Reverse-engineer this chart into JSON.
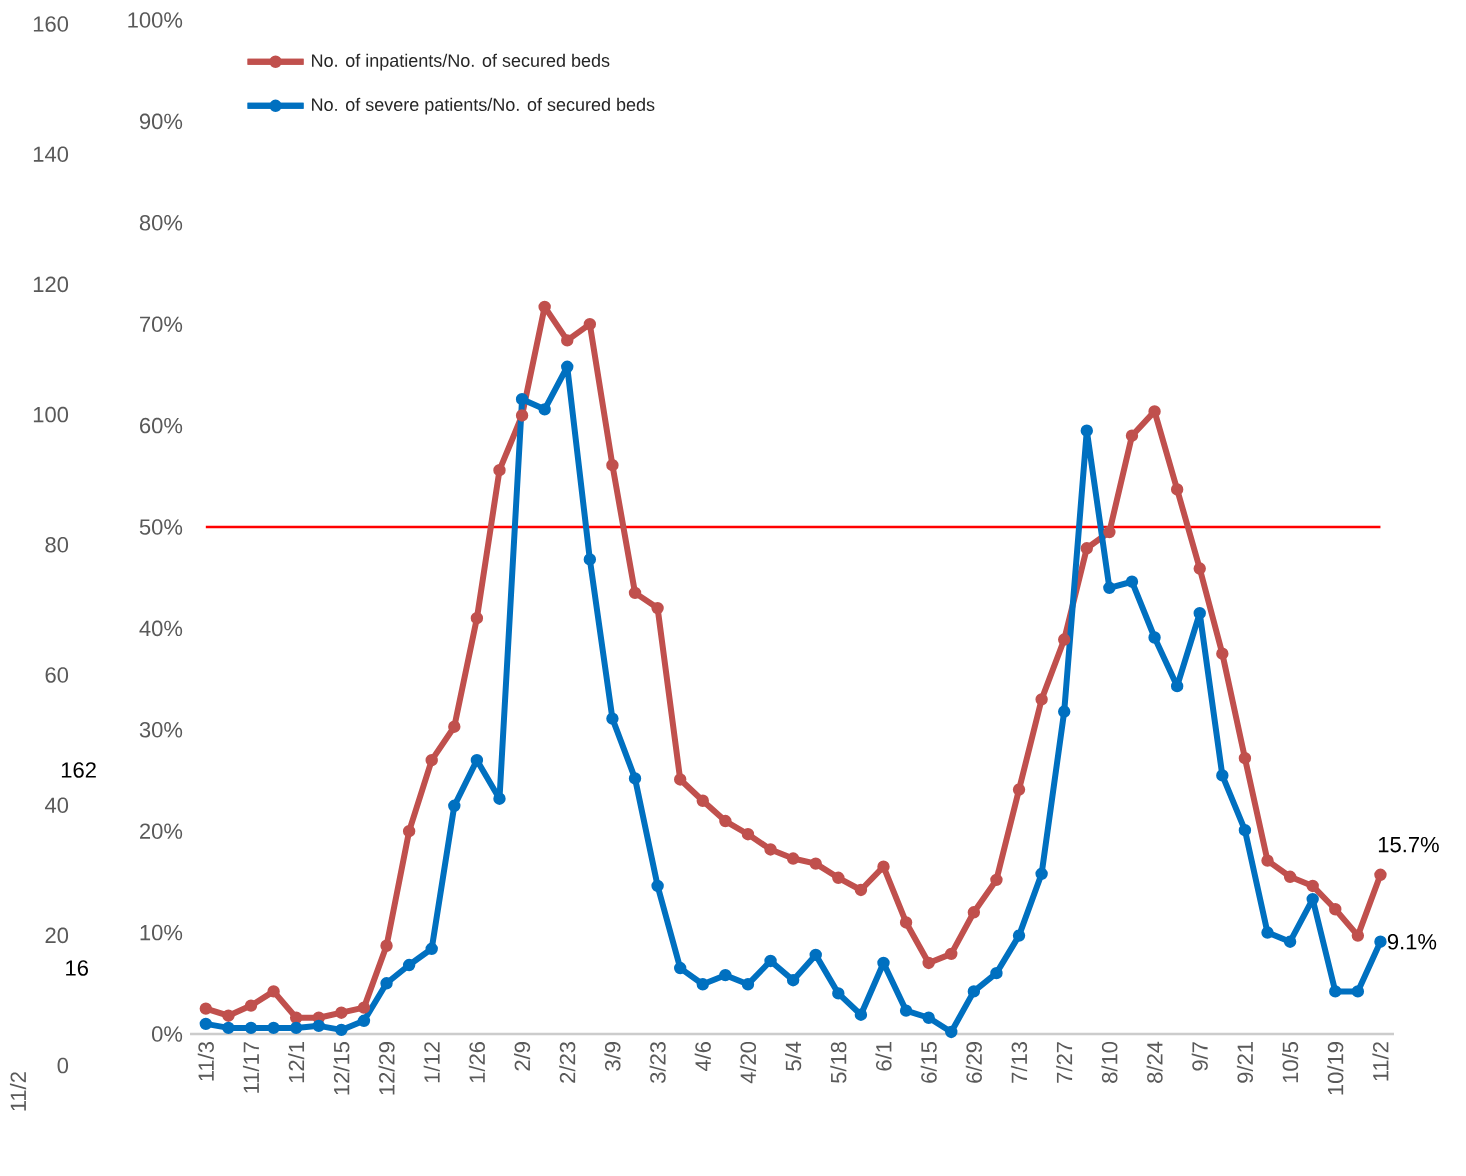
{
  "chart_data": {
    "type": "line",
    "categories": [
      "11/3",
      null,
      "11/17",
      null,
      "12/1",
      null,
      "12/15",
      null,
      "12/29",
      null,
      "1/12",
      null,
      "1/26",
      null,
      "2/9",
      null,
      "2/23",
      null,
      "3/9",
      null,
      "3/23",
      null,
      "4/6",
      null,
      "4/20",
      null,
      "5/4",
      null,
      "5/18",
      null,
      "6/1",
      null,
      "6/15",
      null,
      "6/29",
      null,
      "7/13",
      null,
      "7/27",
      null,
      "8/10",
      null,
      "8/24",
      null,
      "9/7",
      null,
      "9/21",
      null,
      "10/5",
      null,
      "10/19",
      null,
      "11/2"
    ],
    "series": [
      {
        "name": "No. of inpatients/No. of secured beds",
        "color": "#c0504d",
        "values": [
          2.5,
          1.8,
          2.8,
          4.2,
          1.6,
          1.6,
          2.1,
          2.6,
          8.7,
          20.0,
          27.0,
          30.3,
          41.0,
          55.6,
          61.0,
          71.7,
          68.4,
          70.0,
          56.1,
          43.5,
          42.0,
          25.1,
          23.0,
          21.0,
          19.7,
          18.2,
          17.3,
          16.8,
          15.4,
          14.2,
          16.5,
          11.0,
          7.0,
          7.9,
          12.0,
          15.2,
          24.1,
          33.0,
          38.9,
          47.9,
          49.5,
          59.0,
          61.4,
          53.7,
          45.9,
          37.5,
          27.2,
          17.1,
          15.5,
          14.6,
          12.3,
          9.7,
          15.7
        ],
        "value_labels": [
          null,
          null,
          null,
          null,
          null,
          null,
          null,
          null,
          null,
          null,
          null,
          null,
          null,
          null,
          null,
          null,
          null,
          null,
          null,
          null,
          null,
          null,
          null,
          null,
          null,
          null,
          null,
          null,
          null,
          null,
          null,
          null,
          null,
          null,
          null,
          null,
          null,
          null,
          null,
          null,
          null,
          null,
          null,
          null,
          null,
          null,
          null,
          null,
          null,
          null,
          null,
          null,
          "15.7%"
        ]
      },
      {
        "name": "No. of severe patients/No. of secured beds",
        "color": "#0070c0",
        "values": [
          1.0,
          0.6,
          0.6,
          0.6,
          0.6,
          0.8,
          0.4,
          1.3,
          5.0,
          6.8,
          8.4,
          22.5,
          27.0,
          23.2,
          62.6,
          61.6,
          65.8,
          46.8,
          31.1,
          25.2,
          14.6,
          6.5,
          4.9,
          5.8,
          4.9,
          7.2,
          5.3,
          7.8,
          4.0,
          1.9,
          7.0,
          2.3,
          1.6,
          0.2,
          4.2,
          6.0,
          9.7,
          15.8,
          31.8,
          59.5,
          44.0,
          44.6,
          39.1,
          34.3,
          41.5,
          25.5,
          20.1,
          10.0,
          9.1,
          13.3,
          4.2,
          4.2,
          9.1
        ],
        "value_labels": [
          null,
          null,
          null,
          null,
          null,
          null,
          null,
          null,
          null,
          null,
          null,
          null,
          null,
          null,
          null,
          null,
          null,
          null,
          null,
          null,
          null,
          null,
          null,
          null,
          null,
          null,
          null,
          null,
          null,
          null,
          null,
          null,
          null,
          null,
          null,
          null,
          null,
          null,
          null,
          null,
          null,
          null,
          null,
          null,
          null,
          null,
          null,
          null,
          null,
          null,
          null,
          null,
          "9.1%"
        ]
      }
    ],
    "ylim": [
      0,
      100
    ],
    "yticks": [
      {
        "value": 0,
        "label": "0%"
      },
      {
        "value": 10,
        "label": "10%"
      },
      {
        "value": 20,
        "label": "20%"
      },
      {
        "value": 30,
        "label": "30%"
      },
      {
        "value": 40,
        "label": "40%"
      },
      {
        "value": 50,
        "label": "50%"
      },
      {
        "value": 60,
        "label": "60%"
      },
      {
        "value": 70,
        "label": "70%"
      },
      {
        "value": 80,
        "label": "80%"
      },
      {
        "value": 90,
        "label": "90%"
      },
      {
        "value": 100,
        "label": "100%"
      }
    ],
    "ref_lines": [
      {
        "axis": "y",
        "value": 50,
        "color": "#ff0000"
      }
    ],
    "annotations": [
      "160",
      "140",
      "120",
      "100",
      "80",
      "60",
      "40",
      "20",
      "0",
      "162",
      "16",
      "11/2"
    ],
    "legend": "top left",
    "marker": "circle",
    "line_style": "solid",
    "grid": false
  }
}
